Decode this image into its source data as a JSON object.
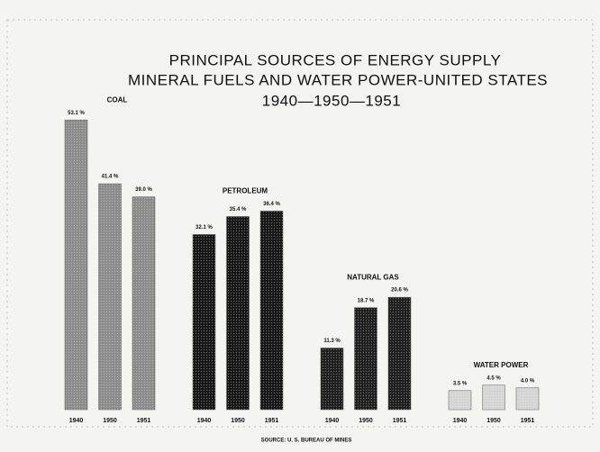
{
  "chart_data": {
    "type": "bar",
    "title": [
      "PRINCIPAL SOURCES OF ENERGY SUPPLY",
      "MINERAL FUELS AND WATER POWER-UNITED STATES",
      "1940—1950—1951"
    ],
    "categories": [
      "1940",
      "1950",
      "1951"
    ],
    "series": [
      {
        "name": "COAL",
        "color": "#8a8a8a",
        "values": [
          53.1,
          41.4,
          39.0
        ],
        "value_labels": [
          "53.1 %",
          "41.4 %",
          "39.0 %"
        ]
      },
      {
        "name": "PETROLEUM",
        "color": "#141414",
        "values": [
          32.1,
          35.4,
          36.4
        ],
        "value_labels": [
          "32.1 %",
          "35.4 %",
          "36.4 %"
        ]
      },
      {
        "name": "NATURAL GAS",
        "color": "#1c1c1c",
        "values": [
          11.3,
          18.7,
          20.6
        ],
        "value_labels": [
          "11.3 %",
          "18.7 %",
          "20.6 %"
        ]
      },
      {
        "name": "WATER POWER",
        "color": "#d4d4d4",
        "values": [
          3.5,
          4.5,
          4.0
        ],
        "value_labels": [
          "3.5 %",
          "4.5 %",
          "4.0 %"
        ]
      }
    ],
    "source": "SOURCE: U. S. BUREAU OF MINES"
  }
}
